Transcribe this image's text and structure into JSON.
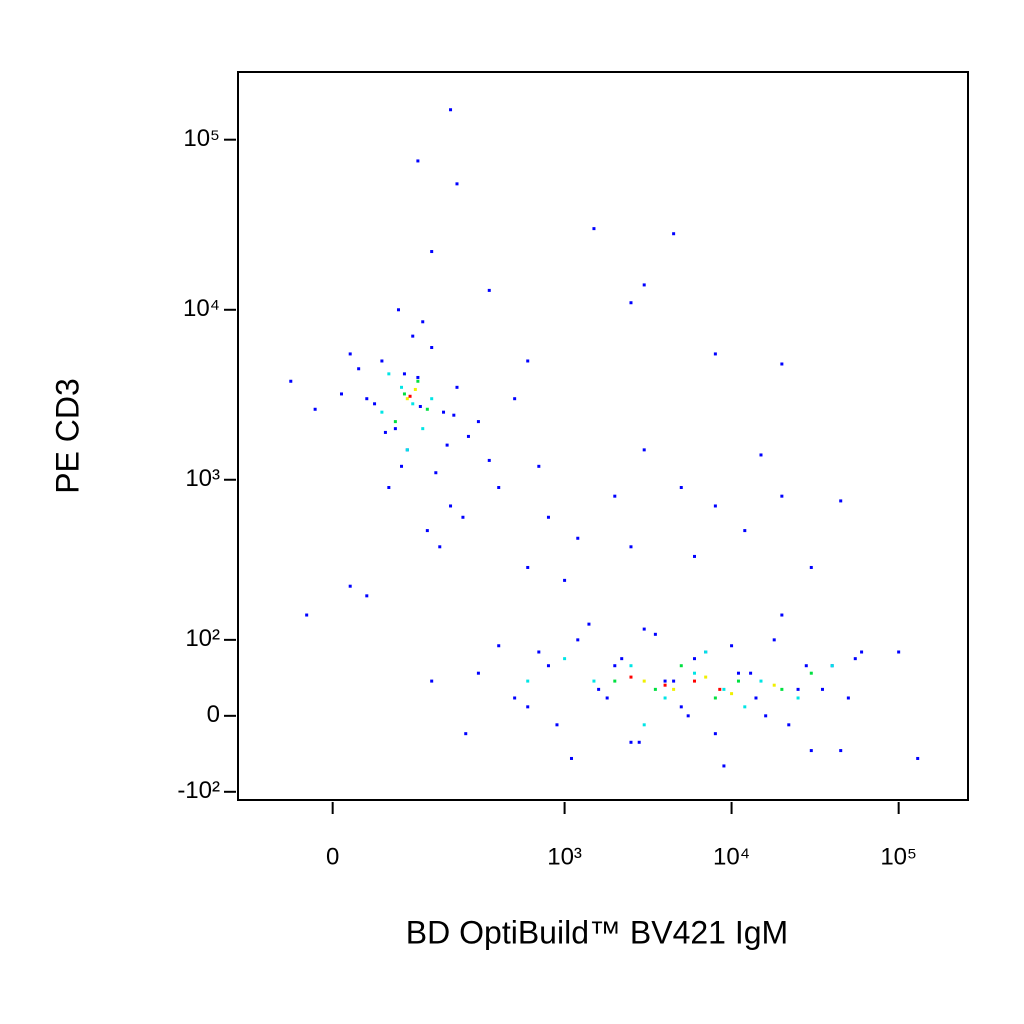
{
  "chart_data": {
    "type": "scatter",
    "xlabel": "BD OptiBuild™ BV421 IgM",
    "ylabel": "PE CD3",
    "xscale": "biexponential",
    "yscale": "biexponential",
    "xlim": [
      -140,
      260000
    ],
    "ylim": [
      -115,
      250000
    ],
    "xticks": [
      0,
      {
        "value": 1000,
        "label": "10³"
      },
      {
        "value": 10000,
        "label": "10⁴"
      },
      {
        "value": 100000,
        "label": "10⁵"
      }
    ],
    "yticks": [
      {
        "value": -100,
        "label": "-10²"
      },
      0,
      {
        "value": 100,
        "label": "10²"
      },
      {
        "value": 1000,
        "label": "10³"
      },
      {
        "value": 10000,
        "label": "10⁴"
      },
      {
        "value": 100000,
        "label": "10⁵"
      }
    ],
    "series": [
      {
        "color": "#0000ff",
        "x": [
          40,
          60,
          80,
          100,
          120,
          150,
          180,
          220,
          260,
          300,
          70,
          90,
          110,
          130,
          160,
          200,
          240,
          50,
          30,
          20,
          10,
          -20,
          -50,
          140,
          170,
          190,
          210,
          350,
          400,
          500,
          600,
          700,
          85,
          95,
          125,
          65,
          800,
          1200,
          2000,
          3000,
          5000,
          8000,
          15000,
          20000,
          45000,
          1500,
          4500,
          2500,
          3000,
          8000,
          20000,
          200,
          120,
          220,
          150,
          350,
          600,
          1000,
          2500,
          6000,
          12000,
          30000,
          40,
          20,
          -30,
          300,
          500,
          700,
          900,
          1200,
          1600,
          2000,
          2500,
          3000,
          4000,
          5000,
          6000,
          8000,
          10000,
          13000,
          16000,
          20000,
          25000,
          30000,
          40000,
          50000,
          60000,
          150,
          250,
          400,
          600,
          800,
          1100,
          1400,
          1800,
          2200,
          2800,
          3500,
          4500,
          5500,
          7000,
          9000,
          11000,
          14000,
          18000,
          22000,
          28000,
          35000,
          45000,
          55000,
          100000,
          130000
        ],
        "y": [
          3000,
          5000,
          2000,
          1500,
          4000,
          6000,
          2500,
          3500,
          1800,
          2200,
          900,
          1200,
          7000,
          8500,
          1100,
          700,
          600,
          2800,
          4500,
          5500,
          3200,
          2600,
          3800,
          500,
          400,
          1600,
          2400,
          1300,
          900,
          3000,
          5000,
          1200,
          10000,
          4200,
          2700,
          1900,
          600,
          450,
          800,
          1500,
          900,
          700,
          1400,
          800,
          750,
          30000,
          28000,
          11000,
          14000,
          5500,
          4800,
          150000,
          75000,
          55000,
          22000,
          13000,
          300,
          250,
          400,
          350,
          500,
          300,
          200,
          230,
          150,
          50,
          20,
          80,
          -10,
          100,
          30,
          60,
          -30,
          120,
          40,
          10,
          70,
          -20,
          90,
          50,
          0,
          150,
          30,
          -40,
          60,
          20,
          80,
          40,
          -20,
          90,
          10,
          60,
          -50,
          130,
          20,
          70,
          -30,
          110,
          40,
          0,
          80,
          -60,
          50,
          20,
          100,
          -10,
          60,
          30,
          -40,
          70,
          80,
          -50
        ]
      },
      {
        "color": "#00e5e5",
        "x": [
          90,
          110,
          70,
          130,
          100,
          150,
          60,
          1500,
          2500,
          4000,
          6000,
          9000,
          15000,
          25000,
          40000,
          3000,
          7000,
          12000,
          600,
          1000
        ],
        "y": [
          3500,
          2800,
          4200,
          2000,
          1500,
          3000,
          2500,
          40,
          60,
          20,
          50,
          30,
          40,
          20,
          60,
          -10,
          80,
          10,
          40,
          70
        ]
      },
      {
        "color": "#00e040",
        "x": [
          95,
          120,
          80,
          140,
          2000,
          3500,
          5000,
          8000,
          11000,
          20000,
          30000
        ],
        "y": [
          3200,
          3800,
          2200,
          2600,
          40,
          30,
          60,
          20,
          40,
          30,
          50
        ]
      },
      {
        "color": "#f0f000",
        "x": [
          100,
          115,
          3000,
          4500,
          7000,
          10000,
          18000
        ],
        "y": [
          3000,
          3400,
          40,
          30,
          45,
          25,
          35
        ]
      },
      {
        "color": "#ff0000",
        "x": [
          105,
          2500,
          4000,
          6000,
          8500
        ],
        "y": [
          3100,
          45,
          35,
          40,
          30
        ]
      }
    ]
  }
}
